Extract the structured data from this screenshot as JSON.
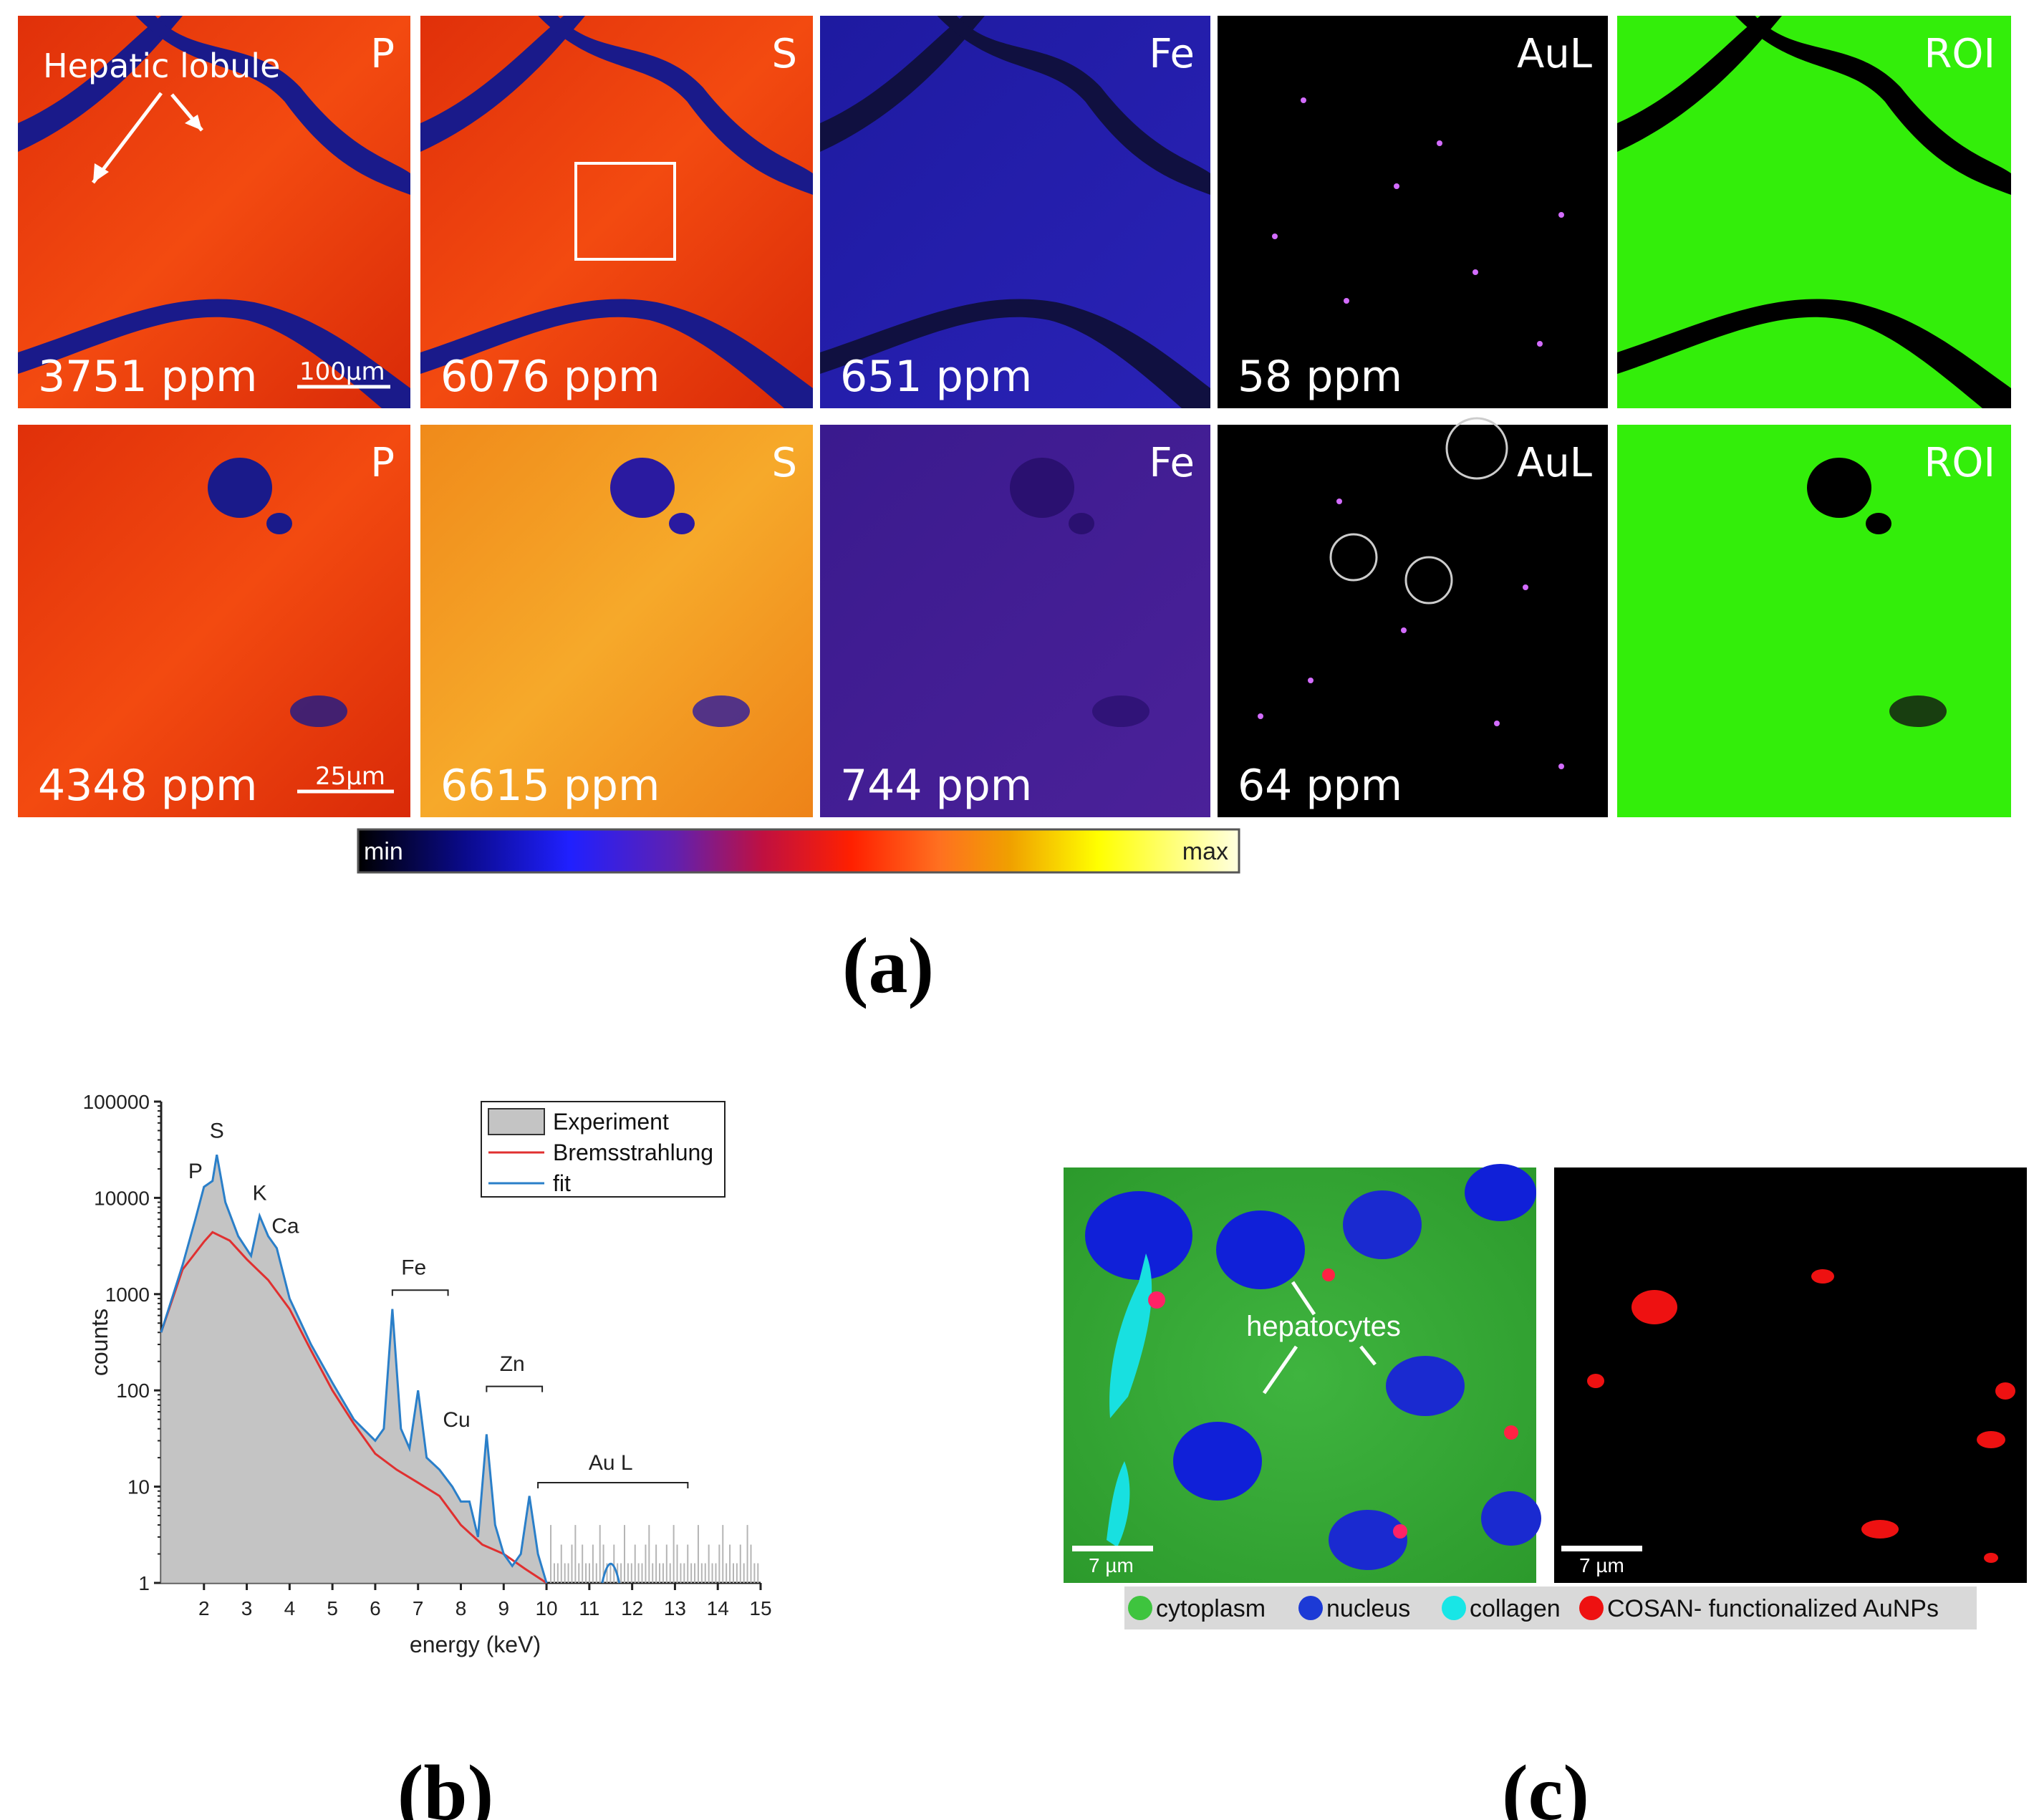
{
  "panel_a": {
    "label": "(a)",
    "annotation": "Hepatic lobule",
    "scale_top": "100µm",
    "scale_bottom": "25µm",
    "row1": [
      {
        "element": "P",
        "ppm": "3751 ppm",
        "palette": "fire"
      },
      {
        "element": "S",
        "ppm": "6076 ppm",
        "palette": "fire"
      },
      {
        "element": "Fe",
        "ppm": "651 ppm",
        "palette": "blue"
      },
      {
        "element": "AuL",
        "ppm": "58 ppm",
        "palette": "black"
      },
      {
        "element": "ROI",
        "ppm": "",
        "palette": "green"
      }
    ],
    "row2": [
      {
        "element": "P",
        "ppm": "4348 ppm",
        "palette": "fire"
      },
      {
        "element": "S",
        "ppm": "6615 ppm",
        "palette": "fireyellow"
      },
      {
        "element": "Fe",
        "ppm": "744 ppm",
        "palette": "purple"
      },
      {
        "element": "AuL",
        "ppm": "64 ppm",
        "palette": "black"
      },
      {
        "element": "ROI",
        "ppm": "",
        "palette": "green"
      }
    ],
    "colorbar": {
      "min": "min",
      "max": "max"
    }
  },
  "panel_b": {
    "label": "(b)",
    "chart_data": {
      "type": "area",
      "xlabel": "energy (keV)",
      "ylabel": "counts",
      "yscale": "log",
      "xlim": [
        1,
        15
      ],
      "ylim": [
        1,
        100000
      ],
      "x_ticks": [
        "2",
        "3",
        "4",
        "5",
        "6",
        "7",
        "8",
        "9",
        "10",
        "11",
        "12",
        "13",
        "14",
        "15"
      ],
      "y_ticks": [
        "1",
        "10",
        "100",
        "1000",
        "10000",
        "100000"
      ],
      "legend": [
        "Experiment",
        "Bremsstrahlung",
        "fit"
      ],
      "legend_position": "top-right",
      "peak_labels": [
        "P",
        "S",
        "K",
        "Ca",
        "Fe",
        "Cu",
        "Zn",
        "Au L"
      ],
      "series": [
        {
          "name": "fit",
          "color": "#2a7fc9",
          "x": [
            1.0,
            1.5,
            1.8,
            2.0,
            2.2,
            2.3,
            2.5,
            2.8,
            3.1,
            3.3,
            3.5,
            3.7,
            4.0,
            4.5,
            5.0,
            5.5,
            6.0,
            6.2,
            6.4,
            6.6,
            6.8,
            7.0,
            7.2,
            7.5,
            7.8,
            8.0,
            8.2,
            8.4,
            8.6,
            8.8,
            9.0,
            9.2,
            9.4,
            9.6,
            9.8,
            10.0
          ],
          "y": [
            400,
            2000,
            6000,
            13000,
            15000,
            28000,
            9000,
            4000,
            2500,
            6500,
            4000,
            3000,
            900,
            300,
            120,
            50,
            30,
            40,
            700,
            40,
            25,
            100,
            20,
            15,
            10,
            7,
            7,
            3,
            35,
            4,
            2,
            1.5,
            2,
            8,
            2,
            1
          ]
        },
        {
          "name": "Bremsstrahlung",
          "color": "#e03030",
          "x": [
            1.0,
            1.5,
            2.0,
            2.2,
            2.6,
            3.0,
            3.5,
            4.0,
            4.5,
            5.0,
            5.5,
            6.0,
            6.5,
            7.0,
            7.5,
            8.0,
            8.5,
            9.0,
            9.5,
            10.0
          ],
          "y": [
            400,
            1800,
            3500,
            4400,
            3600,
            2300,
            1400,
            700,
            260,
            100,
            45,
            22,
            15,
            11,
            8,
            4,
            2.5,
            2,
            1.4,
            1
          ]
        },
        {
          "name": "Experiment",
          "color": "#c4c4c4",
          "x": [
            1.0,
            1.5,
            1.8,
            2.0,
            2.2,
            2.3,
            2.5,
            2.8,
            3.1,
            3.3,
            3.5,
            3.7,
            4.0,
            4.5,
            5.0,
            5.5,
            6.0,
            6.2,
            6.4,
            6.6,
            6.8,
            7.0,
            7.2,
            7.5,
            7.8,
            8.0,
            8.2,
            8.4,
            8.6,
            8.8,
            9.0,
            9.2,
            9.4,
            9.6,
            9.8,
            10.0
          ],
          "y": [
            400,
            2000,
            6000,
            13000,
            15000,
            28000,
            9000,
            4000,
            2500,
            6500,
            4000,
            3000,
            900,
            300,
            120,
            50,
            30,
            40,
            700,
            40,
            25,
            100,
            20,
            15,
            10,
            7,
            7,
            3,
            35,
            4,
            2,
            1.5,
            2,
            8,
            2,
            1
          ]
        }
      ]
    }
  },
  "panel_c": {
    "label": "(c)",
    "annotation": "hepatocytes",
    "scale": "7 µm",
    "legend": [
      {
        "label": "cytoplasm",
        "color": "#3ec43e"
      },
      {
        "label": "nucleus",
        "color": "#1c3ad6"
      },
      {
        "label": "collagen",
        "color": "#18e6e6"
      },
      {
        "label": "COSAN- functionalized AuNPs",
        "color": "#ee1111"
      }
    ]
  }
}
